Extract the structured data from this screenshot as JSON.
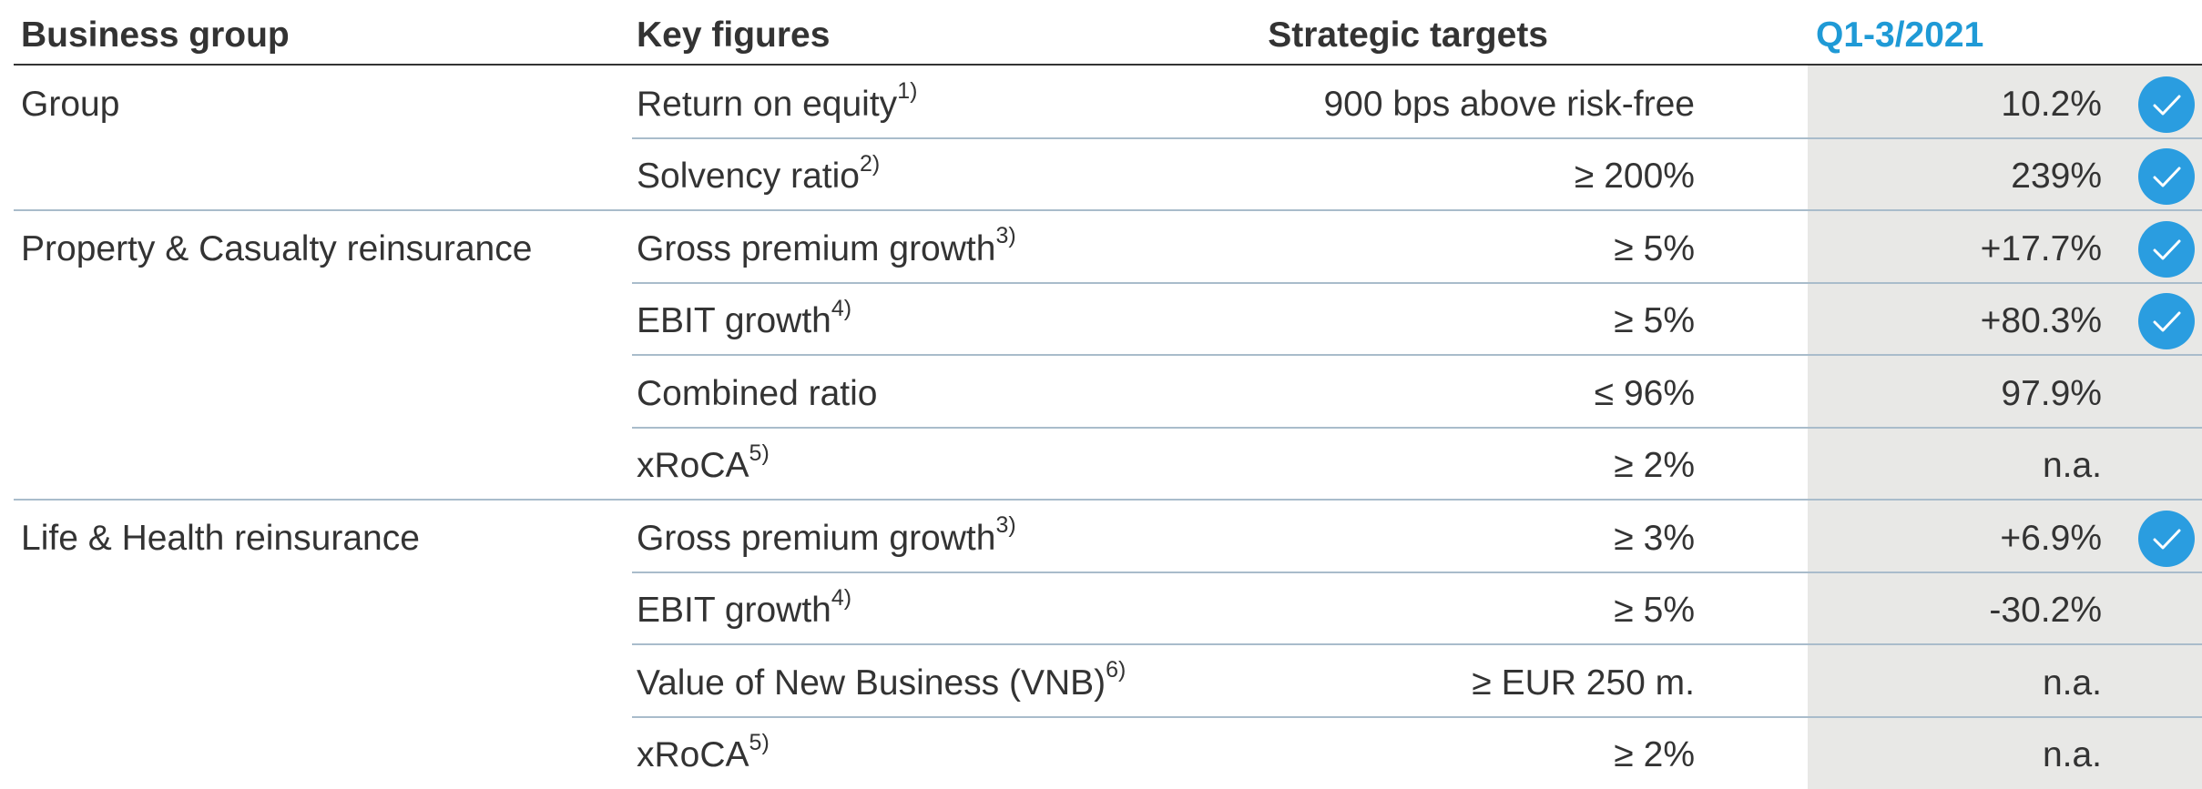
{
  "header": [
    "Business group",
    "Key figures",
    "Strategic targets",
    "Q1-3/2021"
  ],
  "groups": [
    {
      "name": "Group",
      "rows": [
        {
          "figure": "Return on equity",
          "note": "1)",
          "target": "900 bps above risk-free",
          "value": "10.2%",
          "achieved": true
        },
        {
          "figure": "Solvency ratio",
          "note": "2)",
          "target": "≥ 200%",
          "value": "239%",
          "achieved": true
        }
      ]
    },
    {
      "name": "Property & Casualty reinsurance",
      "rows": [
        {
          "figure": "Gross premium growth",
          "note": "3)",
          "target": "≥ 5%",
          "value": "+17.7%",
          "achieved": true
        },
        {
          "figure": "EBIT growth",
          "note": "4)",
          "target": "≥ 5%",
          "value": "+80.3%",
          "achieved": true
        },
        {
          "figure": "Combined ratio",
          "target": "≤ 96%",
          "value": "97.9%",
          "achieved": false
        },
        {
          "figure": "xRoCA",
          "note": "5)",
          "target": "≥ 2%",
          "value": "n.a.",
          "achieved": false
        }
      ]
    },
    {
      "name": "Life & Health reinsurance",
      "rows": [
        {
          "figure": "Gross premium growth",
          "note": "3)",
          "target": "≥ 3%",
          "value": "+6.9%",
          "achieved": true
        },
        {
          "figure": "EBIT growth",
          "note": "4)",
          "target": "≥ 5%",
          "value": "-30.2%",
          "achieved": false
        },
        {
          "figure": "Value of New Business (VNB)",
          "note": "6)",
          "target": "≥ EUR 250 m.",
          "value": "n.a.",
          "achieved": false
        },
        {
          "figure": "xRoCA",
          "note": "5)",
          "target": "≥ 2%",
          "value": "n.a.",
          "achieved": false
        }
      ]
    }
  ]
}
